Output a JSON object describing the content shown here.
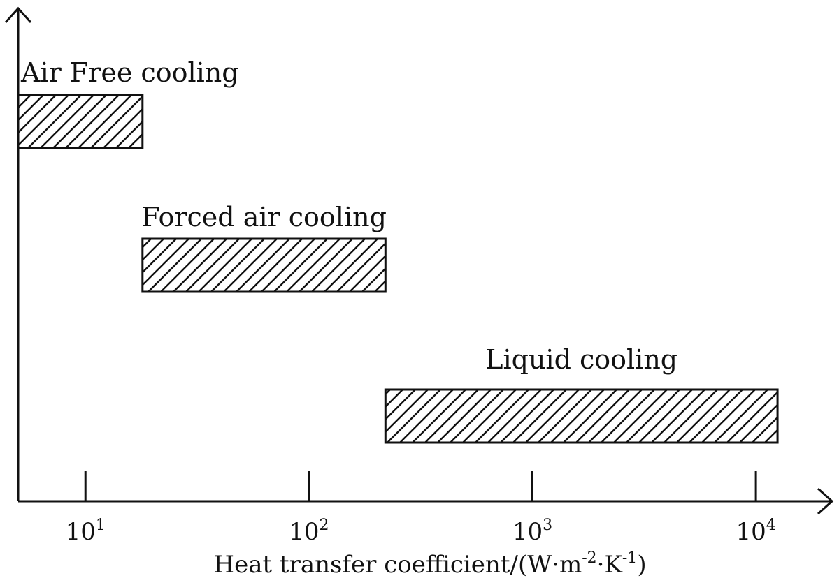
{
  "chart_data": {
    "type": "bar",
    "orientation": "horizontal-range",
    "xscale": "log",
    "xlim": [
      5,
      17782
    ],
    "xticks": [
      {
        "value": 10,
        "base": "10",
        "exp": "1"
      },
      {
        "value": 100,
        "base": "10",
        "exp": "2"
      },
      {
        "value": 1000,
        "base": "10",
        "exp": "3"
      },
      {
        "value": 10000,
        "base": "10",
        "exp": "4"
      }
    ],
    "xlabel": {
      "main": "Heat transfer coefficient/(W·m",
      "exp1": "-2",
      "mid": "·K",
      "exp2": "-1",
      "end": ")"
    },
    "ylabel": "",
    "grid": false,
    "bars": [
      {
        "label": "Air Free cooling",
        "start": 5,
        "end": 18
      },
      {
        "label": "Forced air cooling",
        "start": 18,
        "end": 220
      },
      {
        "label": "Liquid cooling",
        "start": 220,
        "end": 12500
      }
    ],
    "colors": {
      "stroke": "#111111",
      "hatch": "#111111",
      "background": "#ffffff"
    }
  }
}
